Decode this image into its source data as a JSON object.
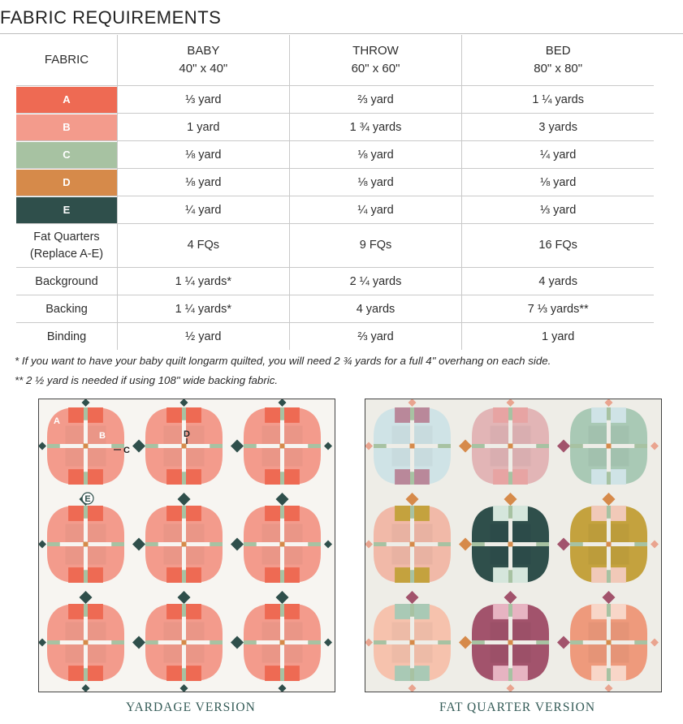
{
  "title": "FABRIC REQUIREMENTS",
  "table": {
    "header": {
      "fabric": "FABRIC",
      "sizes": [
        {
          "name": "BABY",
          "dims": "40\" x 40\""
        },
        {
          "name": "THROW",
          "dims": "60\" x 60\""
        },
        {
          "name": "BED",
          "dims": "80\" x 80\""
        }
      ]
    },
    "fabric_rows": [
      {
        "label": "A",
        "color": "#ee6a53",
        "values": [
          "⅓ yard",
          "⅔ yard",
          "1 ¼ yards"
        ]
      },
      {
        "label": "B",
        "color": "#f39b8c",
        "values": [
          "1 yard",
          "1 ¾ yards",
          "3 yards"
        ]
      },
      {
        "label": "C",
        "color": "#a7c2a2",
        "values": [
          "⅛ yard",
          "⅛ yard",
          "¼ yard"
        ]
      },
      {
        "label": "D",
        "color": "#d68a4a",
        "values": [
          "⅛ yard",
          "⅛ yard",
          "⅛ yard"
        ]
      },
      {
        "label": "E",
        "color": "#2f4f4b",
        "values": [
          "¼ yard",
          "¼ yard",
          "⅓ yard"
        ]
      }
    ],
    "fat_quarters": {
      "label_line1": "Fat Quarters",
      "label_line2": "(Replace A-E)",
      "values": [
        "4 FQs",
        "9 FQs",
        "16 FQs"
      ]
    },
    "other_rows": [
      {
        "label": "Background",
        "values": [
          "1 ¼ yards*",
          "2 ¼ yards",
          "4 yards"
        ]
      },
      {
        "label": "Backing",
        "values": [
          "1 ¼ yards*",
          "4 yards",
          "7 ⅓ yards**"
        ]
      },
      {
        "label": "Binding",
        "values": [
          "½ yard",
          "⅔ yard",
          "1 yard"
        ]
      }
    ]
  },
  "notes": [
    "* If you want to have your baby quilt longarm quilted, you will need 2 ¾ yards for a full 4\" overhang on each side.",
    "** 2 ½ yard is needed if using 108\" wide backing fabric."
  ],
  "diagram_labels": {
    "a": "A",
    "b": "B",
    "c": "C",
    "d": "D",
    "e": "E"
  },
  "captions": {
    "yardage": "YARDAGE VERSION",
    "fat_quarter": "FAT QUARTER VERSION"
  },
  "colors": {
    "background": "#f7f5f1",
    "fq_background": "#eeede7",
    "sashing": "#a7c2a2",
    "cornerstone": "#d68a4a",
    "diamond": "#2f4f4b",
    "caption": "#345b57"
  },
  "fq_blocks": [
    [
      "#cfe3e6",
      "#e2b5b6",
      "#a9c9b5"
    ],
    [
      "#f1b9a8",
      "#2f4f4b",
      "#c4a23e"
    ],
    [
      "#f6c2ad",
      "#a2536c",
      "#ee9a7c"
    ]
  ],
  "fq_accents": [
    [
      "#b9889a",
      "#e7a4a3",
      "#cfe3e6"
    ],
    [
      "#c4a23e",
      "#d5e6dc",
      "#f1c9b8"
    ],
    [
      "#a9c9b5",
      "#e7b4c2",
      "#f8d6c8"
    ]
  ]
}
